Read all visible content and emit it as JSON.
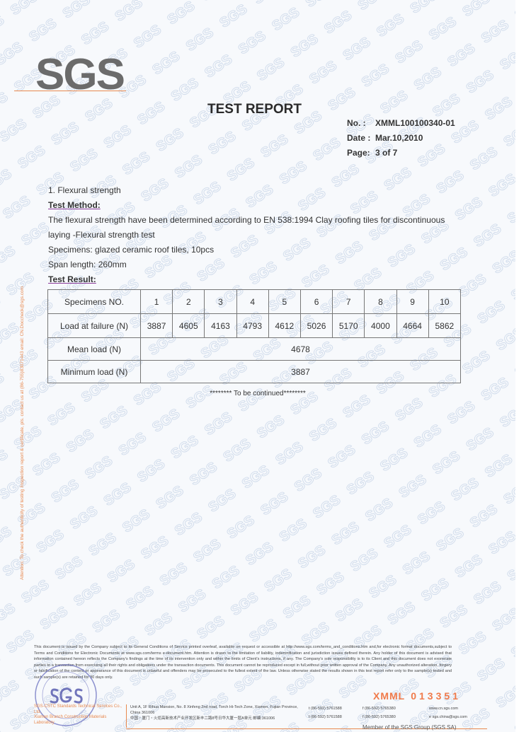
{
  "header": {
    "logo": "SGS",
    "title": "TEST REPORT",
    "no_label": "No.   :",
    "no_value": "XMML100100340-01",
    "date_label": "Date :",
    "date_value": "Mar.10,2010",
    "page_label": "Page:",
    "page_value": "3 of 7"
  },
  "section": {
    "heading": "1. Flexural strength",
    "method_label": "Test Method:",
    "method_line1": "The flexural strength have been determined according to EN 538:1994 Clay roofing tiles for discontinuous",
    "method_line2": "laying -Flexural strength test",
    "specimens": "Specimens: glazed ceramic roof tiles, 10pcs",
    "span": "Span length: 260mm",
    "result_label": "Test Result:"
  },
  "table": {
    "row_specimens_label": "Specimens NO.",
    "specimens": [
      "1",
      "2",
      "3",
      "4",
      "5",
      "6",
      "7",
      "8",
      "9",
      "10"
    ],
    "row_load_label": "Load at failure (N)",
    "loads": [
      "3887",
      "4605",
      "4163",
      "4793",
      "4612",
      "5026",
      "5170",
      "4000",
      "4664",
      "5862"
    ],
    "mean_label": "Mean load (N)",
    "mean_value": "4678",
    "min_label": "Minimum load (N)",
    "min_value": "3887"
  },
  "continued": "******** To be continued********",
  "side_notice": "Attention: To check the authenticity of testing /inspection report & certificate, pls. contact us at (86-755)83071443 email: CN.Doccheck@sgs.com",
  "footer": {
    "disclaimer": "This document is issued by the Company subject to its General Conditions of Service printed overleaf, available on request or accessible at http://www.sgs.com/terms_and_conditions.htm and,for electronic format documents,subject to Terms and Conditions for Electronic Documents at www.sgs.com/terms e-document.htm. Attention is drawn to the limitation of liability, indemnification and jurisdiction issues defined therein. Any holder of this document is advised that information contained hereon reflects the Company's findings at the time of its intervention only and within the limits of Client's instructions, if any. The Company's sole responsibility is to its Client and this document does not exonerate parties to a transaction from exercising all their rights and obligations under the transaction documents. This document cannot be reproduced except in full,without prior written approval of the Company. Any unauthorized alteration, forgery or falsification of the content or appearance of this document is unlawful and offenders may be prosecuted to the fullest extent of the law. Unless otherwise stated the results shown in this test report refer only to the sample(s) tested and such sample(s) are retained for 30 days only.",
    "serial_prefix": "XMML",
    "serial_number": "013351",
    "company_en": "SGS-CSTC Standards Technical Services Co., Ltd.",
    "company_lab": "Xiamen Branch Construction Materials Laboratory",
    "address_en": "Unit A, 1F Rihua Mansion, No. 8 Xinfeng 2nd road, Torch Hi-Tech Zone, Xiamen, Fujian Province, China 361006",
    "address_cn": "中国・厦门・火炬高新技术产业开发区新丰二路8号日华大厦一层A单元 邮编:361006",
    "tel1": "t  (86-592) 5761588",
    "tel2": "t  (86-592) 5761588",
    "fax1": "f  (86-592) 5765380",
    "fax2": "f  (86-592) 5765380",
    "web": "www.cn.sgs.com",
    "email": "e  sgs.china@sgs.com",
    "member": "Member of the SGS Group (SGS SA)",
    "stamp_text": "SGS"
  },
  "colors": {
    "accent": "#e8894f",
    "serial": "#f07a4a",
    "stamp": "#5a5fb0",
    "watermark": "#c9d6e8"
  }
}
